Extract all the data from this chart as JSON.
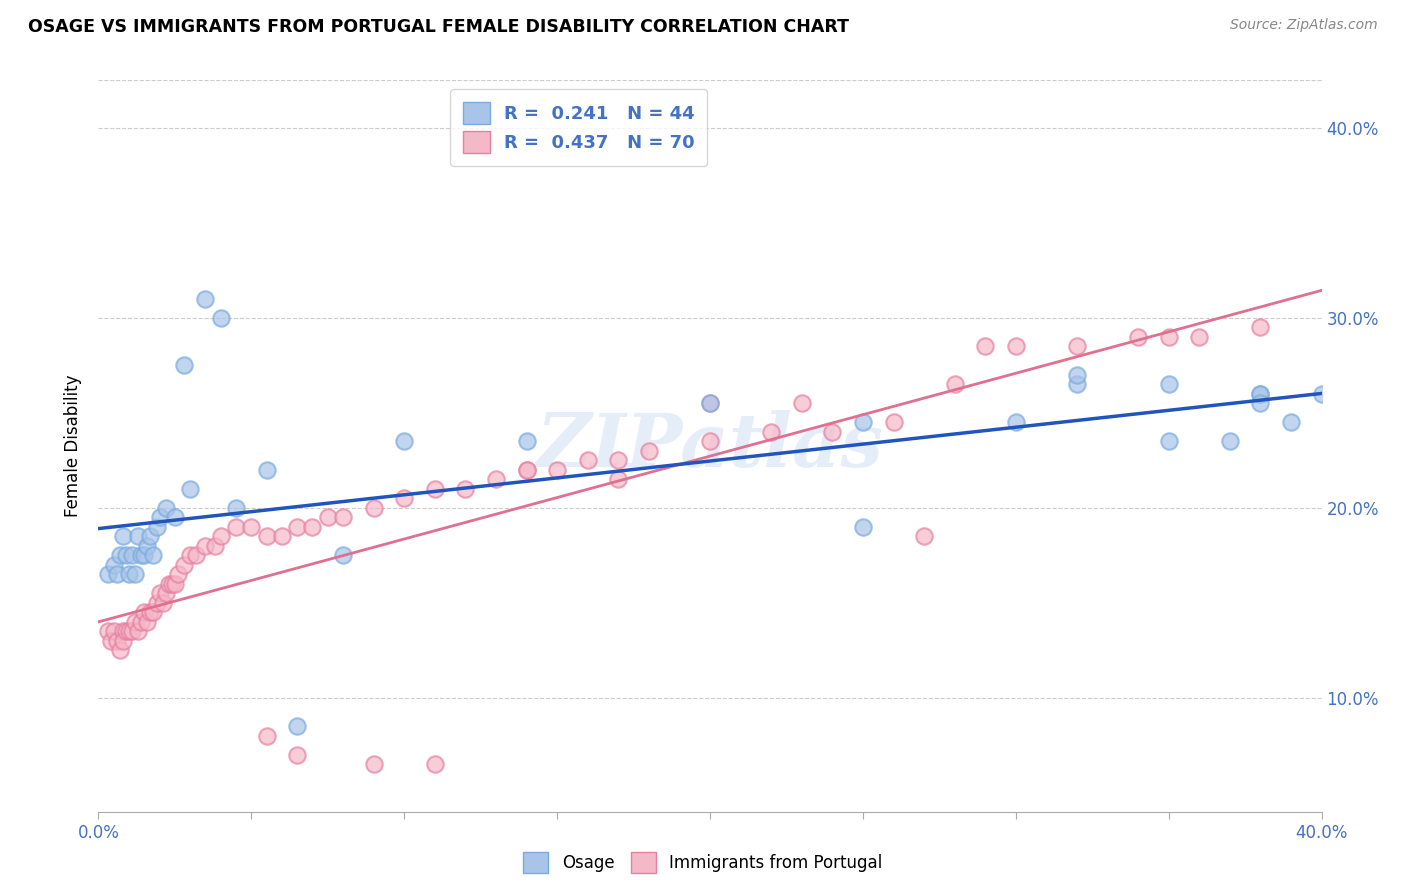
{
  "title": "OSAGE VS IMMIGRANTS FROM PORTUGAL FEMALE DISABILITY CORRELATION CHART",
  "source": "Source: ZipAtlas.com",
  "ylabel": "Female Disability",
  "ytick_labels": [
    "10.0%",
    "20.0%",
    "30.0%",
    "40.0%"
  ],
  "ytick_values": [
    0.1,
    0.2,
    0.3,
    0.4
  ],
  "xlim": [
    0.0,
    0.4
  ],
  "ylim": [
    0.04,
    0.425
  ],
  "osage_color": "#a8c4e8",
  "osage_edge_color": "#7aabe0",
  "portugal_color": "#f5b8c8",
  "portugal_edge_color": "#e87fa0",
  "osage_line_color": "#2255bb",
  "portugal_line_color": "#e07090",
  "watermark": "ZIPatlas",
  "osage_x": [
    0.003,
    0.005,
    0.006,
    0.007,
    0.008,
    0.009,
    0.01,
    0.011,
    0.012,
    0.013,
    0.014,
    0.015,
    0.016,
    0.017,
    0.018,
    0.019,
    0.02,
    0.022,
    0.025,
    0.028,
    0.03,
    0.035,
    0.04,
    0.045,
    0.055,
    0.065,
    0.08,
    0.1,
    0.14,
    0.2,
    0.25,
    0.3,
    0.32,
    0.35,
    0.37,
    0.38,
    0.38,
    0.39,
    0.4,
    0.41,
    0.25,
    0.32,
    0.35,
    0.38
  ],
  "osage_y": [
    0.165,
    0.17,
    0.165,
    0.175,
    0.185,
    0.175,
    0.165,
    0.175,
    0.165,
    0.185,
    0.175,
    0.175,
    0.18,
    0.185,
    0.175,
    0.19,
    0.195,
    0.2,
    0.195,
    0.275,
    0.21,
    0.31,
    0.3,
    0.2,
    0.22,
    0.085,
    0.175,
    0.235,
    0.235,
    0.255,
    0.245,
    0.245,
    0.265,
    0.265,
    0.235,
    0.26,
    0.26,
    0.245,
    0.26,
    0.245,
    0.19,
    0.27,
    0.235,
    0.255
  ],
  "portugal_x": [
    0.003,
    0.004,
    0.005,
    0.006,
    0.007,
    0.008,
    0.008,
    0.009,
    0.01,
    0.011,
    0.012,
    0.013,
    0.014,
    0.015,
    0.016,
    0.017,
    0.018,
    0.019,
    0.02,
    0.021,
    0.022,
    0.023,
    0.024,
    0.025,
    0.026,
    0.028,
    0.03,
    0.032,
    0.035,
    0.038,
    0.04,
    0.045,
    0.05,
    0.055,
    0.06,
    0.065,
    0.07,
    0.075,
    0.08,
    0.09,
    0.1,
    0.11,
    0.12,
    0.13,
    0.14,
    0.15,
    0.16,
    0.17,
    0.18,
    0.2,
    0.22,
    0.24,
    0.26,
    0.28,
    0.29,
    0.3,
    0.32,
    0.34,
    0.35,
    0.36,
    0.38,
    0.27,
    0.23,
    0.2,
    0.17,
    0.14,
    0.11,
    0.09,
    0.065,
    0.055
  ],
  "portugal_y": [
    0.135,
    0.13,
    0.135,
    0.13,
    0.125,
    0.135,
    0.13,
    0.135,
    0.135,
    0.135,
    0.14,
    0.135,
    0.14,
    0.145,
    0.14,
    0.145,
    0.145,
    0.15,
    0.155,
    0.15,
    0.155,
    0.16,
    0.16,
    0.16,
    0.165,
    0.17,
    0.175,
    0.175,
    0.18,
    0.18,
    0.185,
    0.19,
    0.19,
    0.185,
    0.185,
    0.19,
    0.19,
    0.195,
    0.195,
    0.2,
    0.205,
    0.21,
    0.21,
    0.215,
    0.22,
    0.22,
    0.225,
    0.225,
    0.23,
    0.235,
    0.24,
    0.24,
    0.245,
    0.265,
    0.285,
    0.285,
    0.285,
    0.29,
    0.29,
    0.29,
    0.295,
    0.185,
    0.255,
    0.255,
    0.215,
    0.22,
    0.065,
    0.065,
    0.07,
    0.08
  ]
}
